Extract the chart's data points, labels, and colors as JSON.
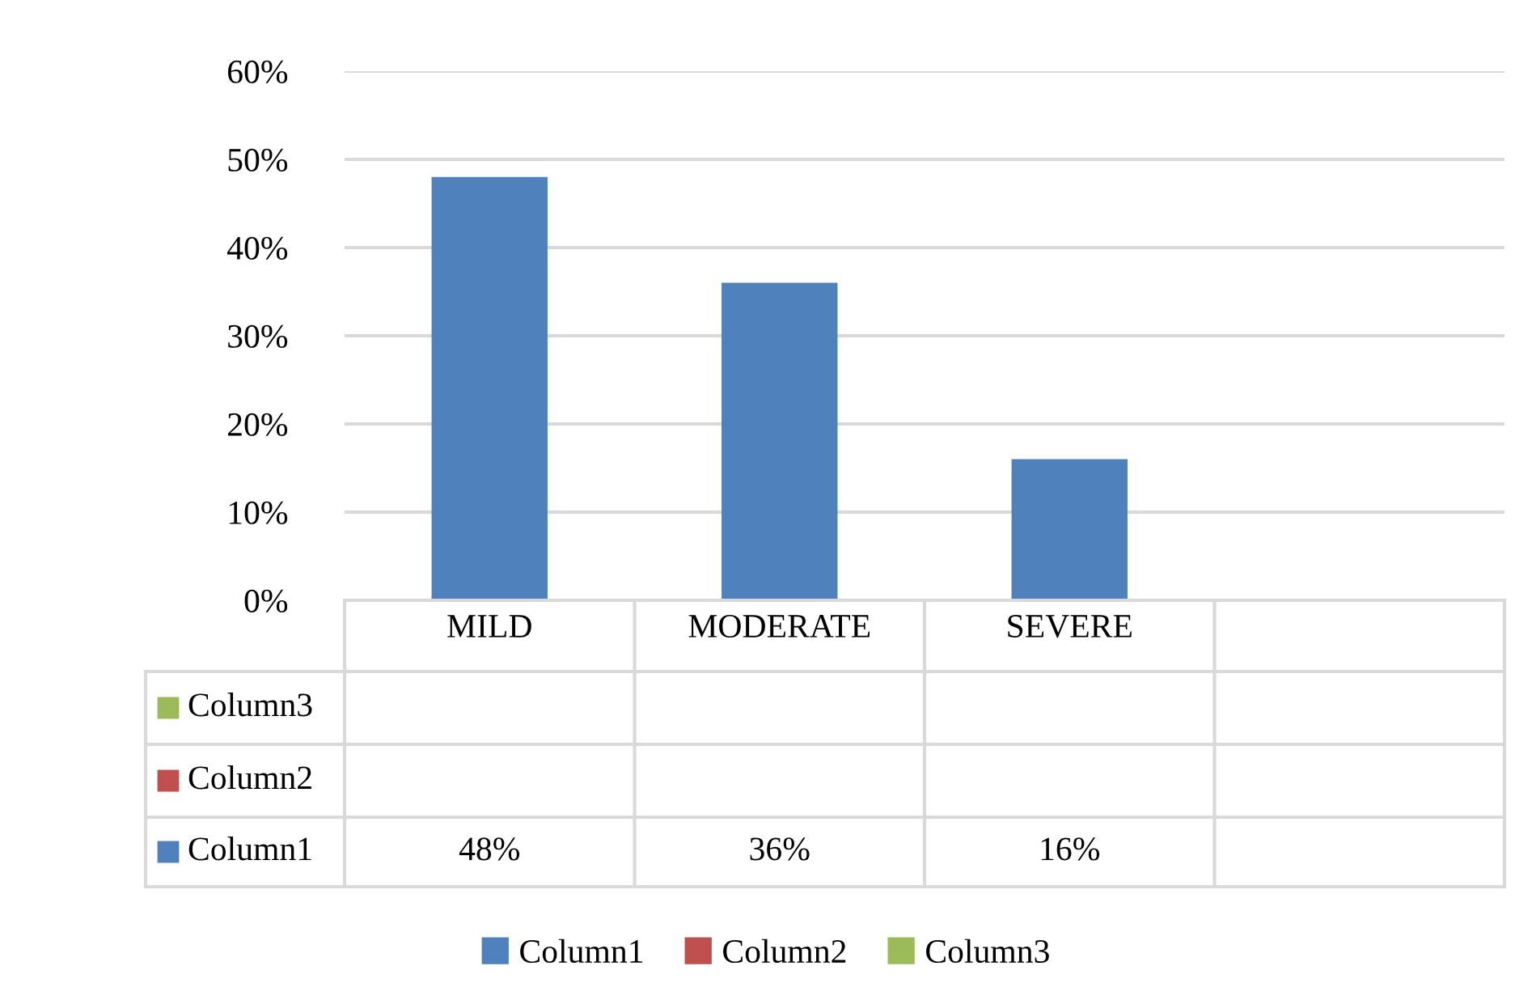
{
  "chart_data": {
    "type": "bar",
    "categories": [
      "MILD",
      "MODERATE",
      "SEVERE",
      null
    ],
    "series": [
      {
        "name": "Column1",
        "color": "#4f81bd",
        "values": [
          48,
          36,
          16,
          null
        ],
        "value_labels": [
          "48%",
          "36%",
          "16%",
          null
        ]
      },
      {
        "name": "Column2",
        "color": "#c0504d",
        "values": [
          null,
          null,
          null,
          null
        ]
      },
      {
        "name": "Column3",
        "color": "#9bbb59",
        "values": [
          null,
          null,
          null,
          null
        ]
      }
    ],
    "ylim": [
      0,
      60
    ],
    "yticks": [
      {
        "value": 0,
        "label": "0%"
      },
      {
        "value": 10,
        "label": "10%"
      },
      {
        "value": 20,
        "label": "20%"
      },
      {
        "value": 30,
        "label": "30%"
      },
      {
        "value": 40,
        "label": "40%"
      },
      {
        "value": 50,
        "label": "50%"
      },
      {
        "value": 60,
        "label": "60%"
      }
    ],
    "grid": "y",
    "legend": "bottom"
  }
}
